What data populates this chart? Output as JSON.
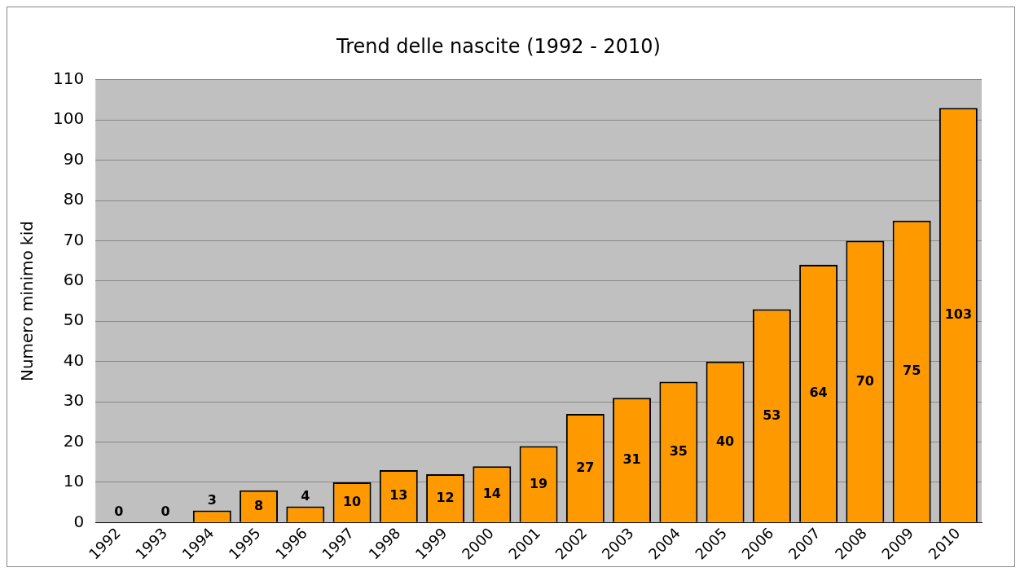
{
  "chart_data": {
    "type": "bar",
    "title": "Trend delle nascite (1992 - 2010)",
    "ylabel": "Numero minimo kid",
    "categories": [
      "1992",
      "1993",
      "1994",
      "1995",
      "1996",
      "1997",
      "1998",
      "1999",
      "2000",
      "2001",
      "2002",
      "2003",
      "2004",
      "2005",
      "2006",
      "2007",
      "2008",
      "2009",
      "2010"
    ],
    "values": [
      0,
      0,
      3,
      8,
      4,
      10,
      13,
      12,
      14,
      19,
      27,
      31,
      35,
      40,
      53,
      64,
      70,
      75,
      103
    ],
    "color": "#ff9900",
    "ylim": [
      0,
      110
    ],
    "yticks": [
      0,
      10,
      20,
      30,
      40,
      50,
      60,
      70,
      80,
      90,
      100,
      110
    ],
    "grid": "y",
    "legend": false,
    "data_labels": true
  }
}
